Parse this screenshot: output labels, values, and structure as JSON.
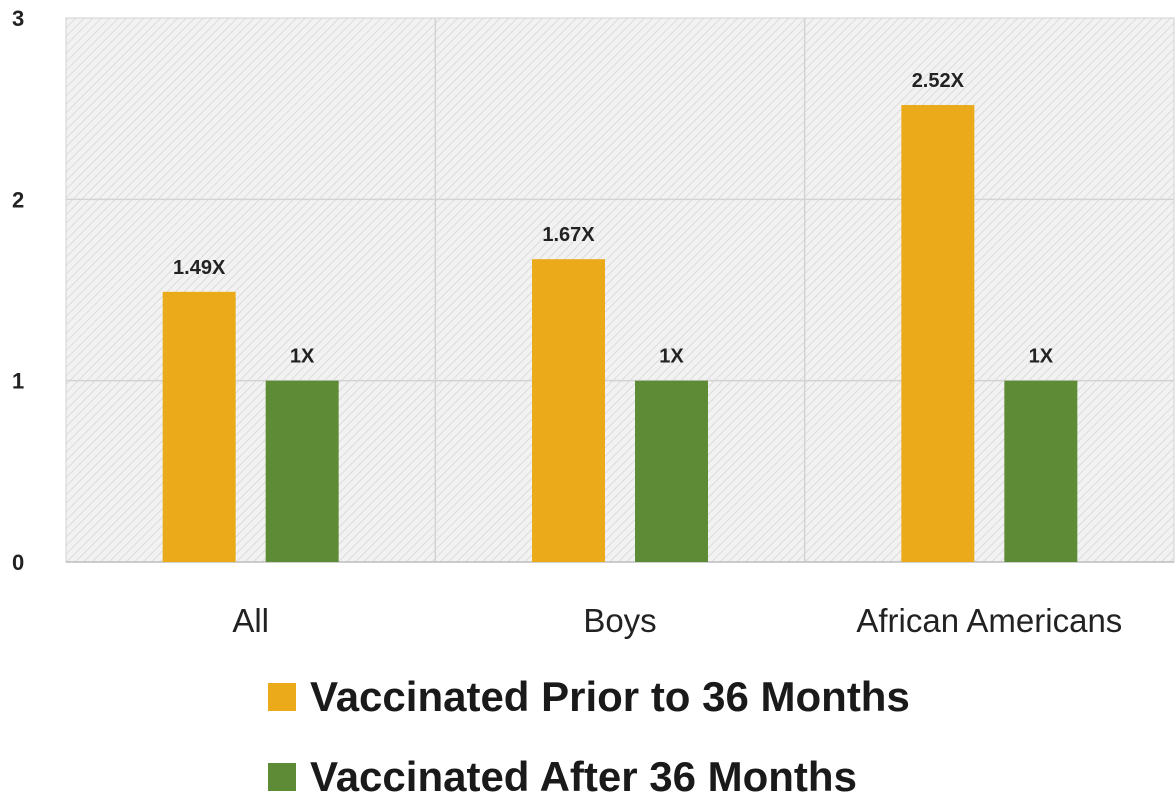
{
  "chart_data": {
    "type": "bar",
    "categories": [
      "All",
      "Boys",
      "African Americans"
    ],
    "series": [
      {
        "name": "Vaccinated Prior to 36 Months",
        "values": [
          1.49,
          1.67,
          2.52
        ],
        "labels": [
          "1.49X",
          "1.67X",
          "2.52X"
        ],
        "color": "#EAAA1A"
      },
      {
        "name": "Vaccinated After 36 Months",
        "values": [
          1,
          1,
          1
        ],
        "labels": [
          "1X",
          "1X",
          "1X"
        ],
        "color": "#5E8B35"
      }
    ],
    "yticks": [
      "0",
      "1",
      "2",
      "3"
    ],
    "ylim": [
      0,
      3
    ],
    "grid": true,
    "legend_position": "bottom",
    "title": "",
    "xlabel": "",
    "ylabel": ""
  }
}
